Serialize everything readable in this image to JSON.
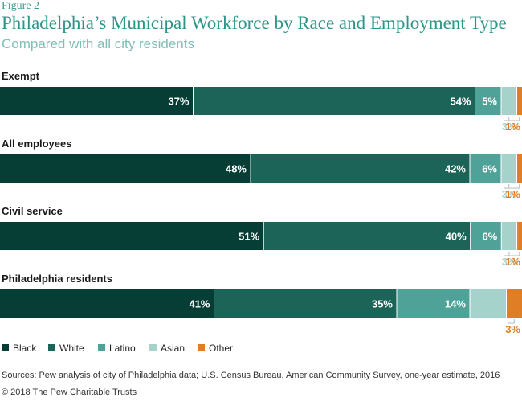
{
  "figure_label": "Figure 2",
  "source": "Sources: Pew analysis of city of Philadelphia data; U.S. Census Bureau, American Community Survey, one-year estimate, 2016",
  "copyright": "© 2018 The Pew Charitable Trusts",
  "chart_data": {
    "type": "bar",
    "orientation": "horizontal",
    "stacked": "100%",
    "title": "Philadelphia’s Municipal Workforce by Race and Employment Type",
    "subtitle": "Compared with all city residents",
    "categories": [
      "Exempt",
      "All employees",
      "Civil service",
      "Philadelphia residents"
    ],
    "series": [
      {
        "name": "Black",
        "color": "#063d34",
        "label_color": "#ffffff",
        "values": [
          37,
          48,
          51,
          41
        ],
        "labels": [
          "37%",
          "48%",
          "51%",
          "41%"
        ]
      },
      {
        "name": "White",
        "color": "#1c6457",
        "label_color": "#ffffff",
        "values": [
          54,
          42,
          40,
          35
        ],
        "labels": [
          "54%",
          "42%",
          "40%",
          "35%"
        ]
      },
      {
        "name": "Latino",
        "color": "#4ea297",
        "label_color": "#ffffff",
        "values": [
          5,
          6,
          6,
          14
        ],
        "labels": [
          "5%",
          "6%",
          "6%",
          "14%"
        ]
      },
      {
        "name": "Asian",
        "color": "#a5d3cc",
        "label_color": "#a5d3cc",
        "values": [
          3,
          3,
          3,
          7
        ],
        "labels": [
          "3%",
          "3%",
          "3%",
          "7%"
        ]
      },
      {
        "name": "Other",
        "color": "#e07e26",
        "label_color": "#e07e26",
        "values": [
          1,
          1,
          1,
          3
        ],
        "labels": [
          "1%",
          "1%",
          "1%",
          "3%"
        ]
      }
    ],
    "legend_position": "bottom-left",
    "grid": false
  }
}
